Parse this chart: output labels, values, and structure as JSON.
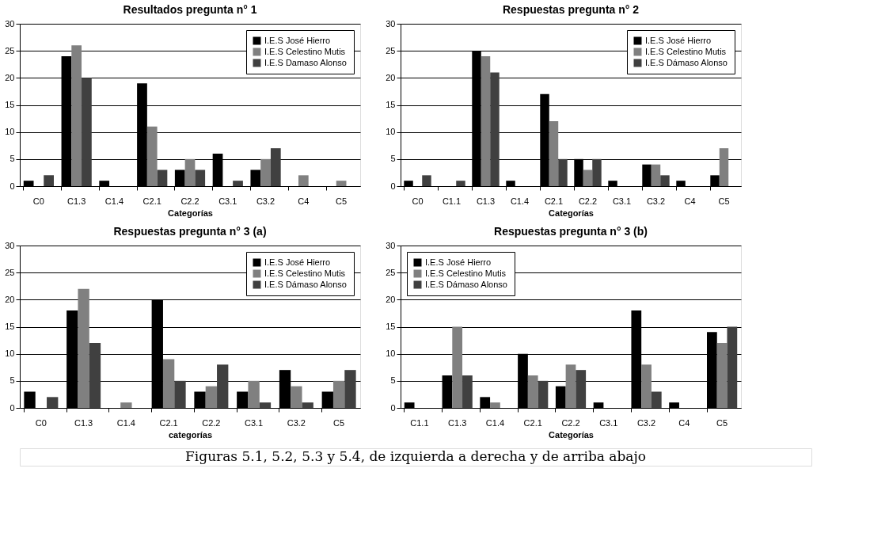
{
  "chart_data": [
    {
      "type": "bar",
      "title": "Resultados pregunta n° 1",
      "xlabel": "Categorías",
      "categories": [
        "C0",
        "C1.3",
        "C1.4",
        "C2.1",
        "C2.2",
        "C3.1",
        "C3.2",
        "C4",
        "C5"
      ],
      "ylim": [
        0,
        30
      ],
      "yticks": [
        0,
        5,
        10,
        15,
        20,
        25,
        30
      ],
      "grid": "y",
      "legend": "top right",
      "series": [
        {
          "name": "I.E.S José Hierro",
          "color": "#000000",
          "values": [
            1,
            24,
            1,
            19,
            3,
            6,
            3,
            0,
            0
          ]
        },
        {
          "name": "I.E.S Celestino Mutis",
          "color": "#808080",
          "values": [
            0,
            26,
            0,
            11,
            5,
            0,
            5,
            2,
            1
          ]
        },
        {
          "name": "I.E.S Damaso Alonso",
          "color": "#404040",
          "values": [
            2,
            20,
            0,
            3,
            3,
            1,
            7,
            0,
            0
          ]
        }
      ]
    },
    {
      "type": "bar",
      "title": "Respuestas  pregunta n° 2",
      "xlabel": "Categorías",
      "categories": [
        "C0",
        "C1.1",
        "C1.3",
        "C1.4",
        "C2.1",
        "C2.2",
        "C3.1",
        "C3.2",
        "C4",
        "C5"
      ],
      "ylim": [
        0,
        30
      ],
      "yticks": [
        0,
        5,
        10,
        15,
        20,
        25,
        30
      ],
      "grid": "y",
      "legend": "top right",
      "series": [
        {
          "name": "I.E.S José Hierro",
          "color": "#000000",
          "values": [
            1,
            0,
            25,
            1,
            17,
            5,
            1,
            4,
            1,
            2
          ]
        },
        {
          "name": "I.E.S Celestino Mutis",
          "color": "#808080",
          "values": [
            0,
            0,
            24,
            0,
            12,
            3,
            0,
            4,
            0,
            7
          ]
        },
        {
          "name": "I.E.S Dámaso Alonso",
          "color": "#404040",
          "values": [
            2,
            1,
            21,
            0,
            5,
            5,
            0,
            2,
            0,
            0
          ]
        }
      ]
    },
    {
      "type": "bar",
      "title": "Respuestas pregunta n° 3 (a)",
      "xlabel": "categorías",
      "categories": [
        "C0",
        "C1.3",
        "C1.4",
        "C2.1",
        "C2.2",
        "C3.1",
        "C3.2",
        "C5"
      ],
      "ylim": [
        0,
        30
      ],
      "yticks": [
        0,
        5,
        10,
        15,
        20,
        25,
        30
      ],
      "grid": "y",
      "legend": "top right",
      "series": [
        {
          "name": "I.E.S José Hierro",
          "color": "#000000",
          "values": [
            3,
            18,
            0,
            20,
            3,
            3,
            7,
            3
          ]
        },
        {
          "name": "I.E.S Celestino Mutis",
          "color": "#808080",
          "values": [
            0,
            22,
            1,
            9,
            4,
            5,
            4,
            5
          ]
        },
        {
          "name": "I.E.S Dámaso Alonso",
          "color": "#404040",
          "values": [
            2,
            12,
            0,
            5,
            8,
            1,
            1,
            7
          ]
        }
      ]
    },
    {
      "type": "bar",
      "title": "Respuestas pregunta n° 3 (b)",
      "xlabel": "Categorías",
      "categories": [
        "C1.1",
        "C1.3",
        "C1.4",
        "C2.1",
        "C2.2",
        "C3.1",
        "C3.2",
        "C4",
        "C5"
      ],
      "ylim": [
        0,
        30
      ],
      "yticks": [
        0,
        5,
        10,
        15,
        20,
        25,
        30
      ],
      "grid": "y",
      "legend": "top left",
      "annotations": [
        "Figuras 5.1, 5.2, 5.3 y 5.4, de izquierda a derecha y de arriba abajo"
      ],
      "series": [
        {
          "name": "I.E.S José Hierro",
          "color": "#000000",
          "values": [
            1,
            6,
            2,
            10,
            4,
            1,
            18,
            1,
            14
          ]
        },
        {
          "name": "I.E.S Celestino Mutis",
          "color": "#808080",
          "values": [
            0,
            15,
            1,
            6,
            8,
            0,
            8,
            0,
            12
          ]
        },
        {
          "name": "I.E.S Dámaso Alonso",
          "color": "#404040",
          "values": [
            0,
            6,
            0,
            5,
            7,
            0,
            3,
            0,
            15
          ]
        }
      ]
    }
  ]
}
